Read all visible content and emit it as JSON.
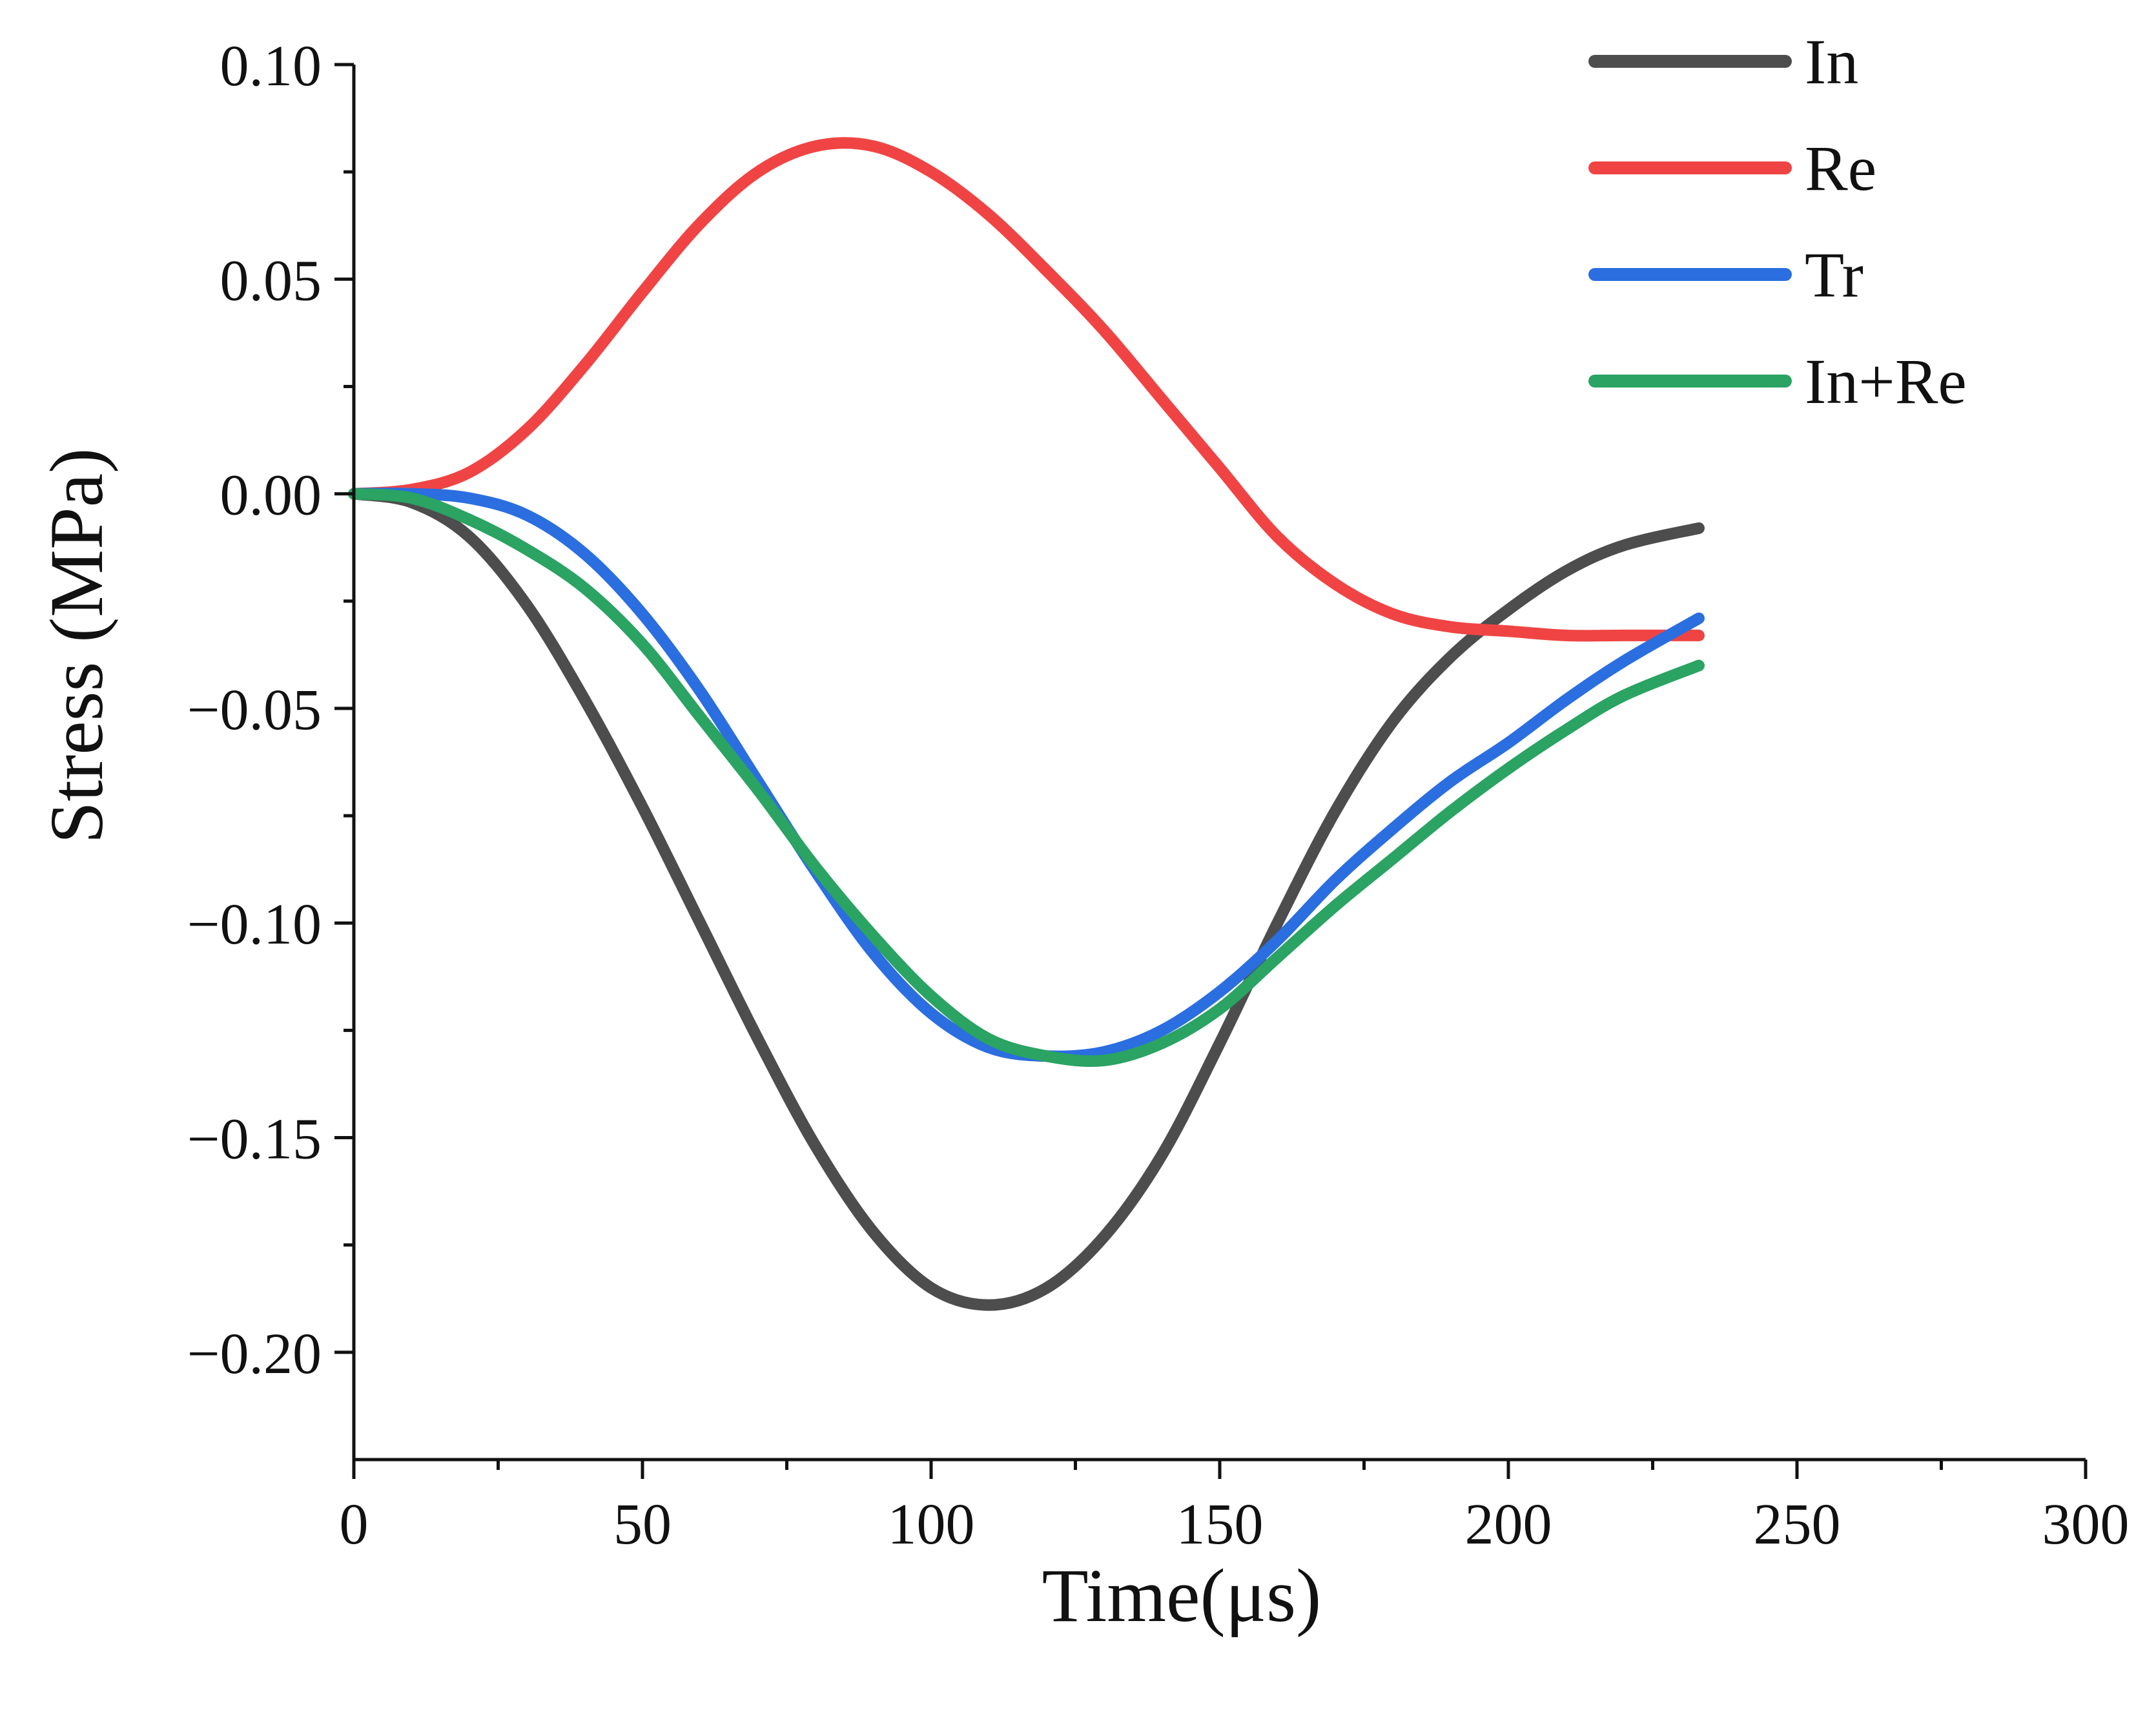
{
  "chart_data": {
    "type": "line",
    "title": "",
    "xlabel": "Time(μs)",
    "ylabel": "Stress (MPa)",
    "xlim": [
      0,
      300
    ],
    "ylim": [
      -0.225,
      0.1
    ],
    "xticks": [
      0,
      50,
      100,
      150,
      200,
      250,
      300
    ],
    "xtick_labels": [
      "0",
      "50",
      "100",
      "150",
      "200",
      "250",
      "300"
    ],
    "yticks": [
      0.1,
      0.05,
      0.0,
      -0.05,
      -0.1,
      -0.15,
      -0.2
    ],
    "ytick_labels": [
      "0.10",
      "0.05",
      "0.00",
      "−0.05",
      "−0.10",
      "−0.15",
      "−0.20"
    ],
    "grid": false,
    "legend_position": "top-right",
    "series": [
      {
        "name": "In",
        "color": "#4d4d4d",
        "x": [
          0,
          10,
          20,
          30,
          40,
          50,
          60,
          70,
          80,
          90,
          100,
          110,
          120,
          130,
          140,
          150,
          160,
          170,
          180,
          190,
          200,
          210,
          220,
          233
        ],
        "y": [
          0.0,
          -0.002,
          -0.01,
          -0.026,
          -0.048,
          -0.073,
          -0.1,
          -0.127,
          -0.152,
          -0.172,
          -0.185,
          -0.189,
          -0.185,
          -0.173,
          -0.154,
          -0.128,
          -0.1,
          -0.074,
          -0.053,
          -0.038,
          -0.027,
          -0.018,
          -0.012,
          -0.008
        ]
      },
      {
        "name": "Re",
        "color": "#f04444",
        "x": [
          0,
          10,
          20,
          30,
          40,
          50,
          60,
          70,
          80,
          90,
          100,
          110,
          120,
          130,
          140,
          150,
          160,
          170,
          180,
          190,
          200,
          210,
          220,
          233
        ],
        "y": [
          0.0,
          0.001,
          0.005,
          0.015,
          0.03,
          0.047,
          0.063,
          0.075,
          0.081,
          0.081,
          0.075,
          0.065,
          0.052,
          0.038,
          0.022,
          0.006,
          -0.01,
          -0.021,
          -0.028,
          -0.031,
          -0.032,
          -0.033,
          -0.033,
          -0.033
        ]
      },
      {
        "name": "Tr",
        "color": "#2a6ee0",
        "x": [
          0,
          10,
          20,
          30,
          40,
          50,
          60,
          70,
          80,
          90,
          100,
          110,
          120,
          130,
          140,
          150,
          160,
          170,
          180,
          190,
          200,
          210,
          220,
          233
        ],
        "y": [
          0.0,
          0.0,
          -0.001,
          -0.005,
          -0.014,
          -0.028,
          -0.046,
          -0.067,
          -0.088,
          -0.107,
          -0.121,
          -0.129,
          -0.131,
          -0.13,
          -0.125,
          -0.116,
          -0.104,
          -0.09,
          -0.078,
          -0.067,
          -0.058,
          -0.048,
          -0.039,
          -0.029
        ]
      },
      {
        "name": "In+Re",
        "color": "#2aa363",
        "x": [
          0,
          10,
          20,
          30,
          40,
          50,
          60,
          70,
          80,
          90,
          100,
          110,
          120,
          130,
          140,
          150,
          160,
          170,
          180,
          190,
          200,
          210,
          220,
          233
        ],
        "y": [
          0.0,
          -0.001,
          -0.006,
          -0.013,
          -0.022,
          -0.035,
          -0.052,
          -0.069,
          -0.087,
          -0.103,
          -0.117,
          -0.127,
          -0.131,
          -0.132,
          -0.128,
          -0.12,
          -0.108,
          -0.096,
          -0.085,
          -0.074,
          -0.064,
          -0.055,
          -0.047,
          -0.04
        ]
      }
    ]
  }
}
